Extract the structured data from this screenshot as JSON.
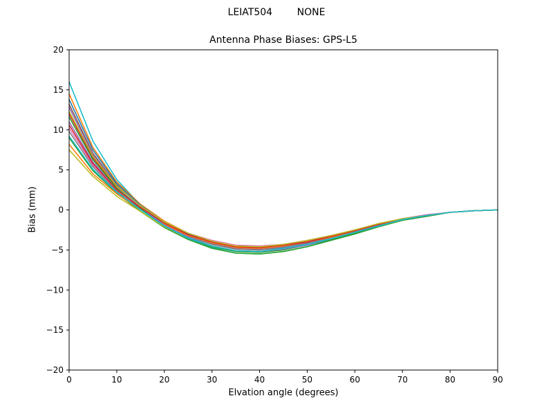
{
  "figure": {
    "suptitle": "LEIAT504        NONE"
  },
  "chart_data": {
    "type": "line",
    "title": "Antenna Phase Biases: GPS-L5",
    "xlabel": "Elvation angle (degrees)",
    "ylabel": "Bias (mm)",
    "xlim": [
      0,
      90
    ],
    "ylim": [
      -20,
      20
    ],
    "xticks": [
      0,
      10,
      20,
      30,
      40,
      50,
      60,
      70,
      80,
      90
    ],
    "yticks": [
      -20,
      -15,
      -10,
      -5,
      0,
      5,
      10,
      15,
      20
    ],
    "grid": false,
    "legend": "none",
    "x": [
      0,
      5,
      10,
      15,
      20,
      25,
      30,
      35,
      40,
      45,
      50,
      55,
      60,
      65,
      70,
      75,
      80,
      85,
      90
    ],
    "series": [
      {
        "name": "line-01",
        "color": "#17becf",
        "values": [
          16.0,
          8.6,
          3.8,
          0.6,
          -1.9,
          -3.6,
          -4.7,
          -5.4,
          -5.5,
          -5.2,
          -4.6,
          -3.8,
          -3.0,
          -2.1,
          -1.3,
          -0.8,
          -0.3,
          -0.1,
          0.0
        ]
      },
      {
        "name": "line-02",
        "color": "#ff7f0e",
        "values": [
          14.5,
          7.8,
          3.5,
          0.7,
          -1.4,
          -2.9,
          -3.9,
          -4.5,
          -4.6,
          -4.3,
          -3.9,
          -3.2,
          -2.5,
          -1.8,
          -1.1,
          -0.7,
          -0.3,
          -0.1,
          0.0
        ]
      },
      {
        "name": "line-03",
        "color": "#2ca02c",
        "values": [
          9.0,
          4.9,
          2.1,
          -0.2,
          -2.2,
          -3.7,
          -4.8,
          -5.4,
          -5.5,
          -5.2,
          -4.6,
          -3.8,
          -3.0,
          -2.1,
          -1.3,
          -0.8,
          -0.3,
          -0.1,
          0.0
        ]
      },
      {
        "name": "line-04",
        "color": "#d62728",
        "values": [
          12.0,
          6.5,
          2.9,
          0.4,
          -1.6,
          -3.1,
          -4.1,
          -4.7,
          -4.8,
          -4.5,
          -4.0,
          -3.4,
          -2.6,
          -1.8,
          -1.2,
          -0.7,
          -0.3,
          -0.1,
          0.0
        ]
      },
      {
        "name": "line-05",
        "color": "#9467bd",
        "values": [
          11.0,
          6.0,
          2.6,
          0.2,
          -1.7,
          -3.2,
          -4.2,
          -4.8,
          -4.9,
          -4.6,
          -4.1,
          -3.4,
          -2.7,
          -1.9,
          -1.2,
          -0.7,
          -0.3,
          -0.1,
          0.0
        ]
      },
      {
        "name": "line-06",
        "color": "#8c564b",
        "values": [
          13.2,
          7.1,
          3.1,
          0.4,
          -1.7,
          -3.3,
          -4.3,
          -4.9,
          -5.0,
          -4.7,
          -4.2,
          -3.5,
          -2.7,
          -1.9,
          -1.2,
          -0.7,
          -0.3,
          -0.1,
          0.0
        ]
      },
      {
        "name": "line-07",
        "color": "#e377c2",
        "values": [
          10.2,
          5.6,
          2.5,
          0.3,
          -1.5,
          -2.9,
          -3.8,
          -4.4,
          -4.5,
          -4.3,
          -3.8,
          -3.2,
          -2.5,
          -1.7,
          -1.1,
          -0.6,
          -0.3,
          -0.1,
          0.0
        ]
      },
      {
        "name": "line-08",
        "color": "#7f7f7f",
        "values": [
          9.8,
          5.4,
          2.3,
          0.1,
          -1.9,
          -3.3,
          -4.3,
          -4.9,
          -5.0,
          -4.7,
          -4.2,
          -3.5,
          -2.7,
          -1.9,
          -1.2,
          -0.7,
          -0.3,
          -0.1,
          0.0
        ]
      },
      {
        "name": "line-09",
        "color": "#bcbd22",
        "values": [
          7.5,
          4.2,
          1.7,
          -0.2,
          -2.1,
          -3.5,
          -4.5,
          -5.1,
          -5.2,
          -4.9,
          -4.4,
          -3.6,
          -2.8,
          -2.0,
          -1.3,
          -0.7,
          -0.3,
          -0.1,
          0.0
        ]
      },
      {
        "name": "line-10",
        "color": "#1f77b4",
        "values": [
          13.8,
          7.5,
          3.3,
          0.6,
          -1.5,
          -3.0,
          -4.0,
          -4.6,
          -4.7,
          -4.4,
          -4.0,
          -3.3,
          -2.6,
          -1.8,
          -1.1,
          -0.7,
          -0.3,
          -0.1,
          0.0
        ]
      },
      {
        "name": "line-11",
        "color": "#ff7f0e",
        "values": [
          8.2,
          4.5,
          2.0,
          0.0,
          -1.8,
          -3.2,
          -4.1,
          -4.7,
          -4.8,
          -4.5,
          -4.0,
          -3.4,
          -2.6,
          -1.8,
          -1.2,
          -0.7,
          -0.3,
          -0.1,
          0.0
        ]
      },
      {
        "name": "line-12",
        "color": "#2ca02c",
        "values": [
          11.6,
          6.3,
          2.7,
          0.2,
          -2.0,
          -3.5,
          -4.6,
          -5.2,
          -5.3,
          -5.0,
          -4.4,
          -3.7,
          -2.9,
          -2.0,
          -1.3,
          -0.8,
          -0.3,
          -0.1,
          0.0
        ]
      },
      {
        "name": "line-13",
        "color": "#9467bd",
        "values": [
          12.8,
          6.9,
          3.0,
          0.3,
          -1.9,
          -3.4,
          -4.5,
          -5.1,
          -5.2,
          -4.9,
          -4.4,
          -3.6,
          -2.8,
          -2.0,
          -1.2,
          -0.7,
          -0.3,
          -0.1,
          0.0
        ]
      },
      {
        "name": "line-14",
        "color": "#d62728",
        "values": [
          10.6,
          5.8,
          2.5,
          0.3,
          -1.6,
          -3.1,
          -4.0,
          -4.6,
          -4.7,
          -4.4,
          -4.0,
          -3.3,
          -2.6,
          -1.8,
          -1.1,
          -0.7,
          -0.3,
          -0.1,
          0.0
        ]
      },
      {
        "name": "line-15",
        "color": "#bcbd22",
        "values": [
          12.3,
          6.7,
          3.0,
          0.5,
          -1.5,
          -2.9,
          -3.9,
          -4.5,
          -4.6,
          -4.3,
          -3.8,
          -3.2,
          -2.5,
          -1.7,
          -1.1,
          -0.7,
          -0.3,
          -0.1,
          0.0
        ]
      },
      {
        "name": "line-16",
        "color": "#17becf",
        "values": [
          9.2,
          5.1,
          2.2,
          0.0,
          -2.0,
          -3.5,
          -4.5,
          -5.1,
          -5.2,
          -4.8,
          -4.3,
          -3.6,
          -2.8,
          -2.0,
          -1.2,
          -0.7,
          -0.3,
          -0.1,
          0.0
        ]
      }
    ]
  }
}
